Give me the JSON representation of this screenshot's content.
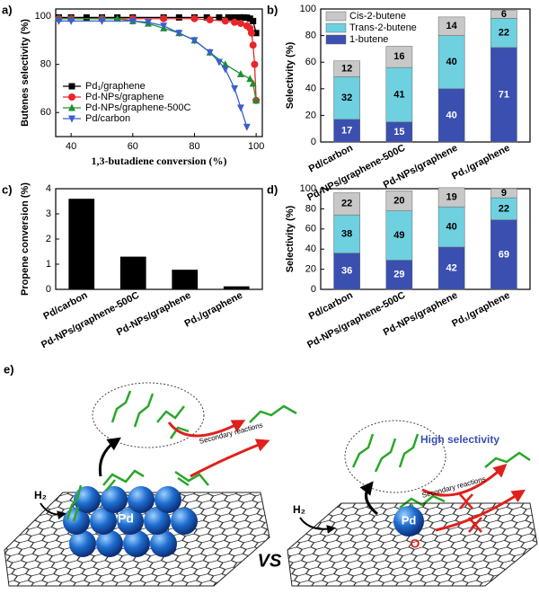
{
  "chart_data": [
    {
      "type": "line",
      "panel_label": "a)",
      "x_label": "1,3-butadiene conversion (%)",
      "y_label": "Butenes selectivity (%)",
      "xlim": [
        35,
        102
      ],
      "xticks": [
        40,
        60,
        80,
        100
      ],
      "ylim": [
        50,
        103
      ],
      "yticks": [
        60,
        80,
        100
      ],
      "legend": "lower left",
      "series": [
        {
          "name": "Pd₁/graphene",
          "color": "#000000",
          "marker": "square",
          "x": [
            36,
            40,
            45,
            50,
            55,
            60,
            70,
            75,
            80,
            84,
            88,
            91,
            93,
            95,
            96,
            97,
            98,
            99,
            100
          ],
          "values": [
            99.5,
            99.5,
            99.5,
            99.5,
            99.5,
            99.5,
            99.5,
            99.5,
            99.5,
            99.5,
            99.5,
            99.5,
            99.5,
            99.5,
            99.5,
            99.4,
            99,
            98,
            93
          ]
        },
        {
          "name": "Pd-NPs/graphene",
          "color": "#e8262a",
          "marker": "circle",
          "x": [
            36,
            40,
            50,
            60,
            70,
            80,
            85,
            90,
            93,
            95,
            97,
            98,
            98.5,
            99,
            99.5,
            100
          ],
          "values": [
            99,
            99,
            99,
            99,
            99,
            99,
            98.5,
            98,
            97.5,
            97,
            96,
            95,
            93,
            88,
            80,
            65
          ]
        },
        {
          "name": "Pd-NPs/graphene-500C",
          "color": "#1d8f2e",
          "marker": "triangle-up",
          "x": [
            36,
            40,
            50,
            55,
            60,
            65,
            70,
            75,
            80,
            85,
            90,
            95,
            98,
            99,
            100
          ],
          "values": [
            99,
            99,
            99,
            99,
            98,
            97,
            95,
            93,
            90,
            85,
            80,
            76,
            74,
            72,
            65
          ]
        },
        {
          "name": "Pd/carbon",
          "color": "#3a5fcd",
          "marker": "triangle-down",
          "x": [
            36,
            40,
            50,
            60,
            65,
            70,
            75,
            80,
            85,
            88,
            90,
            93,
            95,
            97
          ],
          "values": [
            98,
            98,
            98,
            98,
            97.5,
            96,
            93,
            90,
            85,
            81,
            78,
            70,
            62,
            54
          ]
        }
      ]
    },
    {
      "type": "stacked_bar",
      "panel_label": "b)",
      "y_label": "Selectivity (%)",
      "ylim": [
        0,
        100
      ],
      "yticks": [
        0,
        20,
        40,
        60,
        80,
        100
      ],
      "legend": "upper left",
      "categories": [
        "Pd/carbon",
        "Pd-NPs/graphene-500C",
        "Pd-NPs/graphene",
        "Pd₁/graphene"
      ],
      "series": [
        {
          "name": "1-butene",
          "color": "#3a4fb0",
          "label_color": "#ffffff",
          "values": [
            17,
            15,
            40,
            71
          ]
        },
        {
          "name": "Trans-2-butene",
          "color": "#6fd0e0",
          "label_color": "#000000",
          "values": [
            32,
            41,
            40,
            22
          ]
        },
        {
          "name": "Cis-2-butene",
          "color": "#c8c8c8",
          "label_color": "#000000",
          "values": [
            12,
            16,
            14,
            6
          ]
        }
      ]
    },
    {
      "type": "bar",
      "panel_label": "c)",
      "y_label": "Propene conversion (%)",
      "ylim": [
        0,
        4
      ],
      "yticks": [
        0,
        1,
        2,
        3,
        4
      ],
      "color": "#000000",
      "categories": [
        "Pd/carbon",
        "Pd-NPs/graphene-500C",
        "Pd-NPs/graphene",
        "Pd₁/graphene"
      ],
      "values": [
        3.6,
        1.3,
        0.78,
        0.12
      ]
    },
    {
      "type": "stacked_bar",
      "panel_label": "d)",
      "y_label": "Selectivity (%)",
      "ylim": [
        0,
        100
      ],
      "yticks": [
        0,
        20,
        40,
        60,
        80,
        100
      ],
      "categories": [
        "Pd/carbon",
        "Pd-NPs/graphene-500C",
        "Pd-NPs/graphene",
        "Pd₁/graphene"
      ],
      "series": [
        {
          "name": "1-butene",
          "color": "#3a4fb0",
          "label_color": "#ffffff",
          "values": [
            36,
            29,
            42,
            69
          ]
        },
        {
          "name": "Trans-2-butene",
          "color": "#6fd0e0",
          "label_color": "#000000",
          "values": [
            38,
            49,
            40,
            22
          ]
        },
        {
          "name": "Cis-2-butene",
          "color": "#c8c8c8",
          "label_color": "#000000",
          "values": [
            22,
            20,
            19,
            9
          ]
        }
      ]
    }
  ],
  "schematic": {
    "panel_label": "e)",
    "left_h2": "H₂",
    "left_pd": "Pd",
    "left_secondary": "Secondary reactions",
    "vs": "VS",
    "right_h2": "H₂",
    "right_pd": "Pd",
    "right_o": "O",
    "right_secondary": "Secondary reactions",
    "high_selectivity": "High selectivity"
  }
}
